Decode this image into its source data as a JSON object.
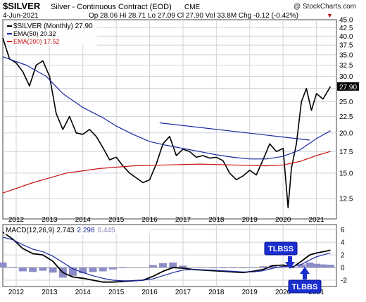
{
  "header": {
    "symbol": "$SILVER",
    "name": "Silver - Continuous Contract (EOD)",
    "exchange": "CME",
    "copyright": "@ StockCharts.com",
    "date": "4-Jun-2021",
    "ohlc": "Op 28.06  Hi 28.71  Lo 27.09  Cl 27.90  Vol 33.8M  Chg -0.12 (-0.42%)",
    "chg_arrow": "▼"
  },
  "legend": {
    "price": "$SILVER (Monthly) 27.90",
    "ema50": "EMA(50) 20.32",
    "ema200": "EMA(200) 17.52"
  },
  "macd_legend": {
    "label": "MACD(12,26,9)",
    "macd": "2.743",
    "signal": "2.298",
    "hist": "0.445"
  },
  "annotations": {
    "tlbss": "TLBSS",
    "tlbbs": "TLBBS"
  },
  "colors": {
    "grid": "#cfd3da",
    "price": "#000000",
    "ema50": "#1a2aa0",
    "ema200": "#c81414",
    "trendline": "#1a2aa0",
    "hist": "#8c8cc8",
    "box_fill": "#1a2ed0",
    "arrow": "#1a2ed0"
  },
  "chart_data": [
    {
      "type": "line",
      "title": "$SILVER Silver - Continuous Contract (EOD) CME",
      "x_ticks": [
        "2012",
        "2013",
        "2014",
        "2015",
        "2016",
        "2017",
        "2018",
        "2019",
        "2020",
        "2021"
      ],
      "y_ticks": [
        12.5,
        15.0,
        17.5,
        20.0,
        22.5,
        25.0,
        27.5,
        30.0,
        32.5,
        35.0,
        37.5,
        40.0,
        42.5,
        45.0
      ],
      "y_scale": "log",
      "ylim": [
        10.8,
        45.0
      ],
      "xlim": [
        2011.6,
        2021.6
      ],
      "grid": true,
      "legend_position": "top-left",
      "series": [
        {
          "name": "$SILVER (Monthly) 27.90",
          "x": [
            2011.6,
            2011.8,
            2012.0,
            2012.2,
            2012.4,
            2012.6,
            2012.8,
            2013.0,
            2013.2,
            2013.4,
            2013.6,
            2013.8,
            2014.0,
            2014.2,
            2014.4,
            2014.6,
            2014.8,
            2015.0,
            2015.2,
            2015.4,
            2015.6,
            2015.8,
            2016.0,
            2016.2,
            2016.4,
            2016.6,
            2016.8,
            2017.0,
            2017.2,
            2017.4,
            2017.6,
            2017.8,
            2018.0,
            2018.2,
            2018.4,
            2018.6,
            2018.8,
            2019.0,
            2019.2,
            2019.4,
            2019.6,
            2019.8,
            2020.0,
            2020.15,
            2020.25,
            2020.4,
            2020.55,
            2020.7,
            2020.85,
            2021.0,
            2021.2,
            2021.42
          ],
          "values": [
            39.5,
            34.0,
            33.0,
            31.0,
            28.0,
            32.5,
            33.5,
            30.0,
            23.0,
            20.5,
            22.5,
            20.0,
            19.8,
            20.5,
            19.5,
            18.0,
            16.5,
            16.8,
            15.8,
            15.0,
            14.5,
            14.0,
            14.3,
            16.0,
            18.5,
            19.5,
            17.0,
            17.8,
            17.5,
            16.8,
            17.0,
            16.7,
            16.8,
            16.4,
            15.0,
            14.3,
            14.7,
            15.3,
            14.8,
            16.5,
            18.5,
            17.5,
            17.9,
            11.7,
            15.5,
            18.5,
            25.0,
            27.5,
            23.5,
            26.5,
            25.5,
            27.9
          ]
        },
        {
          "name": "EMA(50) 20.32",
          "x": [
            2011.6,
            2012.3,
            2012.9,
            2013.4,
            2014.0,
            2014.6,
            2015.0,
            2015.5,
            2016.0,
            2016.5,
            2017.0,
            2017.5,
            2018.0,
            2018.5,
            2019.0,
            2019.5,
            2020.0,
            2020.5,
            2021.0,
            2021.42
          ],
          "values": [
            34.5,
            32.5,
            30.0,
            26.5,
            24.0,
            22.3,
            21.0,
            19.8,
            18.8,
            18.3,
            17.9,
            17.5,
            17.1,
            16.8,
            16.6,
            16.6,
            16.9,
            17.7,
            19.2,
            20.32
          ]
        },
        {
          "name": "EMA(200) 17.52",
          "x": [
            2011.6,
            2012.5,
            2013.5,
            2014.5,
            2015.5,
            2016.5,
            2017.5,
            2018.5,
            2019.5,
            2020.0,
            2020.5,
            2021.0,
            2021.42
          ],
          "values": [
            13.0,
            14.0,
            15.0,
            15.5,
            15.8,
            15.9,
            16.0,
            15.9,
            15.8,
            15.9,
            16.3,
            17.0,
            17.52
          ]
        },
        {
          "name": "",
          "x": [
            2016.3,
            2020.8
          ],
          "values": [
            21.5,
            19.0
          ]
        }
      ]
    },
    {
      "type": "line",
      "title": "MACD(12,26,9) 2.743, 2.298, 0.445",
      "x_ticks": [
        "2012",
        "2013",
        "2014",
        "2015",
        "2016",
        "2017",
        "2018",
        "2019",
        "2020",
        "2021"
      ],
      "y_ticks": [
        -2,
        0,
        2,
        4,
        6
      ],
      "ylim": [
        -3.0,
        6.8
      ],
      "xlim": [
        2011.6,
        2021.6
      ],
      "grid": true,
      "series": [
        {
          "name": "MACD",
          "x": [
            2011.6,
            2011.9,
            2012.2,
            2012.5,
            2012.8,
            2013.1,
            2013.4,
            2013.7,
            2014.0,
            2014.3,
            2014.6,
            2014.9,
            2015.2,
            2015.5,
            2015.8,
            2016.1,
            2016.4,
            2016.7,
            2017.0,
            2017.3,
            2017.6,
            2017.9,
            2018.2,
            2018.5,
            2018.8,
            2019.1,
            2019.4,
            2019.7,
            2020.0,
            2020.3,
            2020.55,
            2020.8,
            2021.0,
            2021.2,
            2021.42
          ],
          "values": [
            5.6,
            4.5,
            3.0,
            2.2,
            2.0,
            1.0,
            -0.8,
            -1.5,
            -1.7,
            -2.0,
            -2.3,
            -2.3,
            -2.2,
            -2.1,
            -2.0,
            -1.4,
            -0.6,
            0.0,
            -0.1,
            -0.3,
            -0.4,
            -0.5,
            -0.6,
            -0.7,
            -0.8,
            -0.6,
            -0.3,
            0.3,
            0.4,
            0.1,
            1.0,
            2.0,
            2.3,
            2.5,
            2.743
          ]
        },
        {
          "name": "Signal",
          "x": [
            2011.6,
            2011.9,
            2012.2,
            2012.5,
            2012.8,
            2013.1,
            2013.4,
            2013.7,
            2014.0,
            2014.3,
            2014.6,
            2014.9,
            2015.2,
            2015.5,
            2015.8,
            2016.1,
            2016.4,
            2016.7,
            2017.0,
            2017.3,
            2017.6,
            2017.9,
            2018.2,
            2018.5,
            2018.8,
            2019.1,
            2019.4,
            2019.7,
            2020.0,
            2020.3,
            2020.55,
            2020.8,
            2021.0,
            2021.2,
            2021.42
          ],
          "values": [
            4.8,
            4.4,
            3.6,
            2.9,
            2.5,
            1.8,
            0.8,
            -0.2,
            -0.8,
            -1.3,
            -1.7,
            -2.0,
            -2.1,
            -2.1,
            -2.0,
            -1.8,
            -1.3,
            -0.8,
            -0.4,
            -0.3,
            -0.35,
            -0.4,
            -0.5,
            -0.6,
            -0.7,
            -0.7,
            -0.5,
            -0.1,
            0.2,
            0.2,
            0.5,
            1.2,
            1.7,
            2.0,
            2.298
          ]
        },
        {
          "name": "Histogram",
          "type": "bar",
          "x": [
            2011.6,
            2011.9,
            2012.2,
            2012.5,
            2012.8,
            2013.1,
            2013.4,
            2013.7,
            2014.0,
            2014.3,
            2014.6,
            2014.9,
            2015.2,
            2015.5,
            2015.8,
            2016.1,
            2016.4,
            2016.7,
            2017.0,
            2017.3,
            2017.6,
            2017.9,
            2018.2,
            2018.5,
            2018.8,
            2019.1,
            2019.4,
            2019.7,
            2020.0,
            2020.3,
            2020.55,
            2020.8,
            2021.0,
            2021.2,
            2021.42
          ],
          "values": [
            0.8,
            0.1,
            -0.6,
            -0.7,
            -0.5,
            -0.8,
            -1.6,
            -1.3,
            -0.9,
            -0.7,
            -0.6,
            -0.3,
            -0.1,
            0.0,
            0.0,
            0.4,
            0.7,
            0.8,
            0.3,
            0.0,
            -0.05,
            -0.1,
            -0.1,
            -0.1,
            -0.1,
            0.1,
            0.2,
            0.4,
            0.2,
            -0.1,
            0.5,
            0.8,
            0.6,
            0.5,
            0.445
          ]
        }
      ]
    }
  ]
}
